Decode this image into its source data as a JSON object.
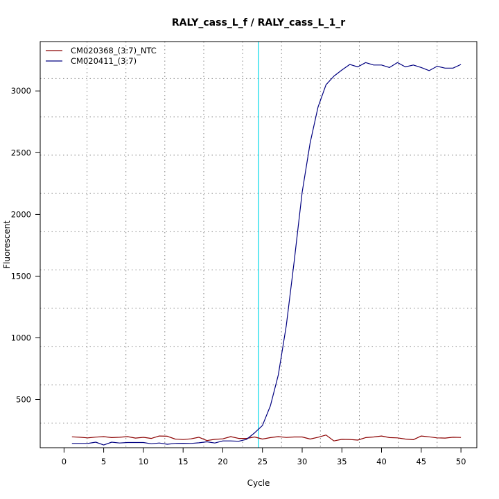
{
  "chart_data": {
    "type": "line",
    "title": "RALY_cass_L_f / RALY_cass_L_1_r",
    "xlabel": "Cycle",
    "ylabel": "Fluorescent",
    "xlim": [
      -3,
      52
    ],
    "ylim": [
      110,
      3400
    ],
    "xticks": [
      0,
      5,
      10,
      15,
      20,
      25,
      30,
      35,
      40,
      45,
      50
    ],
    "yticks": [
      500,
      1000,
      1500,
      2000,
      2500,
      3000
    ],
    "xgrid": [
      2.9,
      7.8,
      12.7,
      17.6,
      22.5,
      27.4,
      32.3,
      37.2,
      42.1,
      47.0
    ],
    "ygrid": [
      310,
      620,
      930,
      1240,
      1550,
      1860,
      2170,
      2480,
      2790,
      3100
    ],
    "legend_position": "top-left",
    "threshold": {
      "x": 24.5,
      "color": "#00d8e8"
    },
    "x": [
      1,
      2,
      3,
      4,
      5,
      6,
      7,
      8,
      9,
      10,
      11,
      12,
      13,
      14,
      15,
      16,
      17,
      18,
      19,
      20,
      21,
      22,
      23,
      24,
      25,
      26,
      27,
      28,
      29,
      30,
      31,
      32,
      33,
      34,
      35,
      36,
      37,
      38,
      39,
      40,
      41,
      42,
      43,
      44,
      45,
      46,
      47,
      48,
      49,
      50
    ],
    "series": [
      {
        "name": "CM020368_(3:7)_NTC",
        "color": "#8b0000",
        "values": [
          198,
          195,
          190,
          196,
          200,
          192,
          195,
          200,
          188,
          194,
          185,
          205,
          203,
          180,
          176,
          182,
          195,
          168,
          178,
          182,
          200,
          185,
          185,
          197,
          180,
          192,
          200,
          193,
          197,
          197,
          180,
          195,
          213,
          165,
          178,
          177,
          172,
          192,
          197,
          205,
          192,
          190,
          180,
          175,
          205,
          198,
          190,
          188,
          195,
          193
        ]
      },
      {
        "name": "CM020411_(3:7)",
        "color": "#000080",
        "values": [
          145,
          145,
          145,
          155,
          132,
          155,
          148,
          152,
          152,
          152,
          142,
          148,
          138,
          145,
          146,
          145,
          150,
          158,
          148,
          165,
          165,
          162,
          178,
          230,
          290,
          450,
          700,
          1100,
          1620,
          2180,
          2580,
          2870,
          3050,
          3120,
          3170,
          3215,
          3195,
          3230,
          3210,
          3210,
          3190,
          3230,
          3195,
          3210,
          3190,
          3165,
          3200,
          3185,
          3185,
          3215
        ]
      }
    ]
  }
}
